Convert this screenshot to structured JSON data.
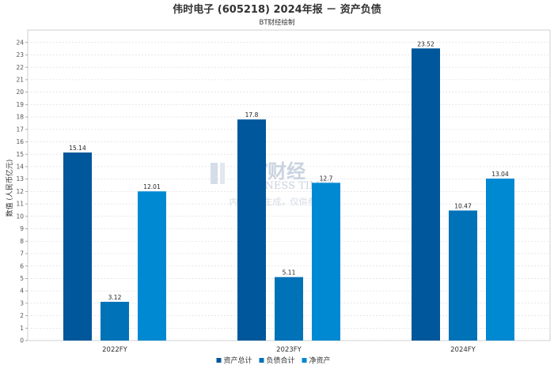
{
  "chart_data": {
    "type": "bar",
    "title": "伟时电子 (605218) 2024年报 － 资产负债",
    "subtitle": "BT财经绘制",
    "ylabel": "数值 (人民币亿元)",
    "xlabel": "",
    "ylim": [
      0,
      25
    ],
    "yticks": [
      0,
      1,
      2,
      3,
      4,
      5,
      6,
      7,
      8,
      9,
      10,
      11,
      12,
      13,
      14,
      15,
      16,
      17,
      18,
      19,
      20,
      21,
      22,
      23,
      24
    ],
    "grid": true,
    "legend_position": "bottom",
    "categories": [
      "2022FY",
      "2023FY",
      "2024FY"
    ],
    "series": [
      {
        "name": "资产总计",
        "color": "#00579b",
        "values": [
          15.14,
          17.8,
          23.52
        ]
      },
      {
        "name": "负债合计",
        "color": "#0072b8",
        "values": [
          3.12,
          5.11,
          10.47
        ]
      },
      {
        "name": "净资产",
        "color": "#0089d3",
        "values": [
          12.01,
          12.7,
          13.04
        ]
      }
    ]
  },
  "watermark": {
    "logo_text": "BT财经",
    "logo_sub": "BUSINESS TIMES",
    "note": "内容由AI生成，仅供参考"
  }
}
